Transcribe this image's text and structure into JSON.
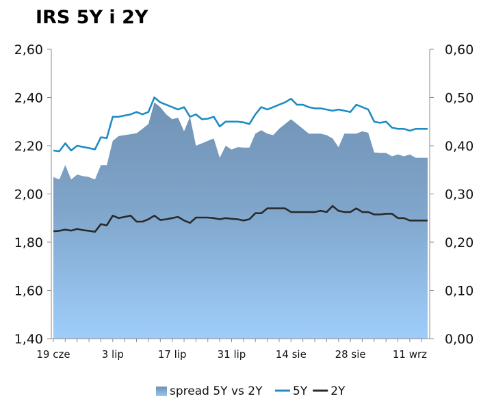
{
  "chart_data": {
    "type": "line",
    "title": "IRS 5Y i 2Y",
    "x_tick_labels": [
      "19 cze",
      "3 lip",
      "17 lip",
      "31 lip",
      "14 sie",
      "28 sie",
      "11 wrz"
    ],
    "x_tick_index": [
      0,
      10,
      20,
      30,
      40,
      50,
      60
    ],
    "n_points": 64,
    "y_left": {
      "range": [
        1.4,
        2.6
      ],
      "ticks": [
        "1,40",
        "1,60",
        "1,80",
        "2,00",
        "2,20",
        "2,40",
        "2,60"
      ]
    },
    "y_right": {
      "range": [
        0.0,
        0.6
      ],
      "ticks": [
        "0,00",
        "0,10",
        "0,20",
        "0,30",
        "0,40",
        "0,50",
        "0,60"
      ]
    },
    "legend_position": "bottom",
    "colors": {
      "spread_top": "#7193b5",
      "spread_bottom": "#9fcdfb",
      "line_5y": "#1d8cc3",
      "line_2y": "#2a2a2a",
      "axis": "#888888"
    },
    "series": [
      {
        "name": "spread 5Y vs 2Y",
        "type": "area",
        "axis": "right",
        "values": [
          0.335,
          0.33,
          0.36,
          0.33,
          0.34,
          0.337,
          0.335,
          0.33,
          0.36,
          0.36,
          0.41,
          0.42,
          0.422,
          0.424,
          0.426,
          0.435,
          0.445,
          0.49,
          0.48,
          0.465,
          0.455,
          0.458,
          0.43,
          0.46,
          0.4,
          0.405,
          0.41,
          0.415,
          0.375,
          0.4,
          0.392,
          0.397,
          0.396,
          0.396,
          0.425,
          0.432,
          0.425,
          0.422,
          0.435,
          0.445,
          0.455,
          0.445,
          0.435,
          0.425,
          0.425,
          0.425,
          0.422,
          0.415,
          0.397,
          0.425,
          0.425,
          0.425,
          0.43,
          0.427,
          0.386,
          0.385,
          0.385,
          0.378,
          0.382,
          0.378,
          0.382,
          0.375,
          0.375,
          0.375
        ]
      },
      {
        "name": "5Y",
        "type": "line",
        "axis": "left",
        "values": [
          2.18,
          2.177,
          2.21,
          2.18,
          2.2,
          2.195,
          2.19,
          2.185,
          2.235,
          2.232,
          2.32,
          2.32,
          2.325,
          2.33,
          2.34,
          2.33,
          2.34,
          2.4,
          2.38,
          2.37,
          2.36,
          2.35,
          2.36,
          2.32,
          2.33,
          2.31,
          2.312,
          2.32,
          2.28,
          2.3,
          2.3,
          2.3,
          2.297,
          2.29,
          2.33,
          2.36,
          2.35,
          2.36,
          2.37,
          2.38,
          2.395,
          2.37,
          2.37,
          2.36,
          2.355,
          2.355,
          2.35,
          2.345,
          2.35,
          2.345,
          2.34,
          2.37,
          2.36,
          2.35,
          2.3,
          2.295,
          2.3,
          2.275,
          2.27,
          2.27,
          2.262,
          2.27,
          2.27,
          2.27
        ]
      },
      {
        "name": "2Y",
        "type": "line",
        "axis": "left",
        "values": [
          1.845,
          1.847,
          1.852,
          1.848,
          1.855,
          1.85,
          1.847,
          1.843,
          1.875,
          1.87,
          1.91,
          1.9,
          1.905,
          1.91,
          1.885,
          1.885,
          1.895,
          1.91,
          1.892,
          1.895,
          1.9,
          1.905,
          1.89,
          1.88,
          1.902,
          1.902,
          1.902,
          1.9,
          1.895,
          1.9,
          1.897,
          1.895,
          1.89,
          1.895,
          1.92,
          1.92,
          1.94,
          1.94,
          1.94,
          1.94,
          1.925,
          1.925,
          1.925,
          1.925,
          1.925,
          1.93,
          1.925,
          1.95,
          1.93,
          1.925,
          1.925,
          1.94,
          1.925,
          1.925,
          1.915,
          1.915,
          1.918,
          1.918,
          1.9,
          1.9,
          1.89,
          1.89,
          1.89,
          1.89
        ]
      }
    ]
  }
}
